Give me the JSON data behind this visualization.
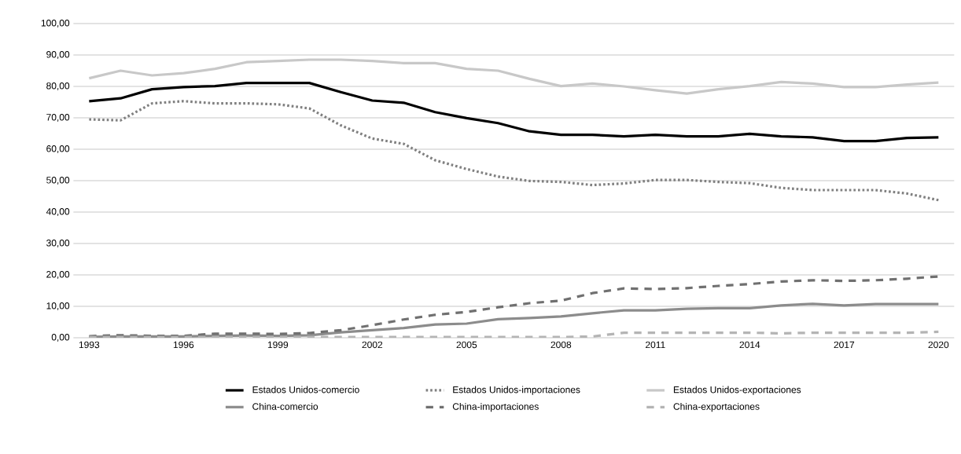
{
  "chart_data": {
    "type": "line",
    "x": [
      1993,
      1994,
      1995,
      1996,
      1997,
      1998,
      1999,
      2000,
      2001,
      2002,
      2003,
      2004,
      2005,
      2006,
      2007,
      2008,
      2009,
      2010,
      2011,
      2012,
      2013,
      2014,
      2015,
      2016,
      2017,
      2018,
      2019,
      2020
    ],
    "series": [
      {
        "name": "Estados Unidos-comercio",
        "color": "#000000",
        "line_style": "solid",
        "values": [
          75.3,
          76.2,
          79.1,
          79.8,
          80.1,
          81.1,
          81.1,
          81.1,
          78.2,
          75.5,
          74.8,
          71.8,
          69.9,
          68.3,
          65.7,
          64.6,
          64.6,
          64.1,
          64.6,
          64.1,
          64.1,
          64.9,
          64.1,
          63.8,
          62.6,
          62.6,
          63.6,
          63.8
        ]
      },
      {
        "name": "Estados Unidos-importaciones",
        "color": "#808080",
        "line_style": "dotted",
        "values": [
          69.5,
          69.2,
          74.6,
          75.3,
          74.6,
          74.6,
          74.3,
          73.0,
          67.6,
          63.4,
          61.7,
          56.5,
          53.7,
          51.3,
          49.9,
          49.6,
          48.6,
          49.1,
          50.2,
          50.2,
          49.6,
          49.2,
          47.7,
          47.0,
          47.0,
          47.0,
          45.9,
          43.8
        ]
      },
      {
        "name": "Estados Unidos-exportaciones",
        "color": "#c8c8c8",
        "line_style": "solid",
        "values": [
          82.6,
          85.0,
          83.5,
          84.2,
          85.6,
          87.7,
          88.1,
          88.5,
          88.5,
          88.1,
          87.4,
          87.4,
          85.6,
          85.0,
          82.4,
          80.1,
          80.9,
          80.0,
          78.8,
          77.7,
          79.1,
          80.1,
          81.4,
          80.9,
          79.8,
          79.8,
          80.6,
          81.2
        ]
      },
      {
        "name": "China-comercio",
        "color": "#8c8c8c",
        "line_style": "solid",
        "values": [
          0.3,
          0.4,
          0.4,
          0.4,
          0.6,
          0.7,
          0.6,
          0.8,
          1.7,
          2.4,
          3.1,
          4.2,
          4.5,
          5.9,
          6.3,
          6.8,
          7.8,
          8.7,
          8.7,
          9.2,
          9.4,
          9.4,
          10.3,
          10.8,
          10.3,
          10.7,
          10.7,
          10.7
        ]
      },
      {
        "name": "China-importaciones",
        "color": "#707070",
        "line_style": "dashed",
        "values": [
          0.5,
          0.8,
          0.6,
          0.6,
          1.3,
          1.3,
          1.2,
          1.5,
          2.4,
          4.0,
          5.8,
          7.3,
          8.2,
          9.7,
          11.0,
          11.8,
          14.2,
          15.7,
          15.5,
          15.8,
          16.5,
          17.1,
          17.9,
          18.3,
          18.1,
          18.3,
          18.8,
          19.5
        ]
      },
      {
        "name": "China-exportaciones",
        "color": "#b4b4b4",
        "line_style": "dashed",
        "values": [
          0.2,
          0.2,
          0.2,
          0.2,
          0.2,
          0.2,
          0.2,
          0.2,
          0.2,
          0.2,
          0.2,
          0.2,
          0.2,
          0.2,
          0.2,
          0.2,
          0.4,
          1.6,
          1.6,
          1.6,
          1.6,
          1.6,
          1.4,
          1.6,
          1.6,
          1.6,
          1.6,
          1.9
        ]
      }
    ],
    "xlim": [
      1992.5,
      2020.5
    ],
    "xticks": [
      1993,
      1996,
      1999,
      2002,
      2005,
      2008,
      2011,
      2014,
      2017,
      2020
    ],
    "ylim": [
      0,
      100
    ],
    "yticks": [
      {
        "value": 0,
        "label": "0,00"
      },
      {
        "value": 10,
        "label": "10,00"
      },
      {
        "value": 20,
        "label": "20,00"
      },
      {
        "value": 30,
        "label": "30,00"
      },
      {
        "value": 40,
        "label": "40,00"
      },
      {
        "value": 50,
        "label": "50,00"
      },
      {
        "value": 60,
        "label": "60,00"
      },
      {
        "value": 70,
        "label": "70,00"
      },
      {
        "value": 80,
        "label": "80,00"
      },
      {
        "value": 90,
        "label": "90,00"
      },
      {
        "value": 100,
        "label": "100,00"
      }
    ],
    "grid": "y",
    "legend": "bottom",
    "marker": "none"
  }
}
